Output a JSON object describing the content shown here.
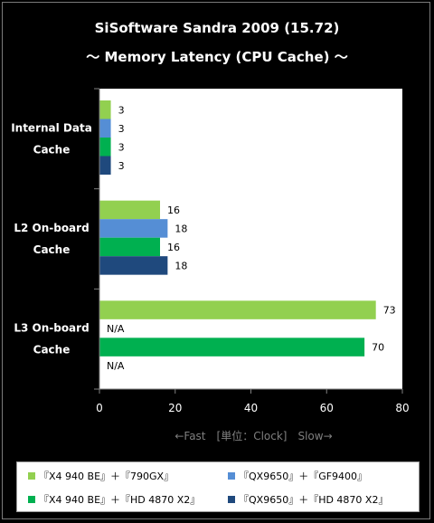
{
  "chart_data": {
    "type": "bar",
    "orientation": "horizontal",
    "title": "SiSoftware Sandra 2009 (15.72)",
    "subtitle": "～ Memory Latency (CPU Cache) ～",
    "xlabel": "←Fast　[単位：Clock]　Slow→",
    "xlim": [
      0,
      80
    ],
    "xticks": [
      "0",
      "20",
      "40",
      "60",
      "80"
    ],
    "grid": false,
    "legend_position": "bottom",
    "categories": [
      [
        "Internal Data",
        "Cache"
      ],
      [
        "L2 On-board",
        "Cache"
      ],
      [
        "L3 On-board",
        "Cache"
      ]
    ],
    "series": [
      {
        "name": "『X4 940 BE』＋『790GX』",
        "color": "#92d050",
        "values": [
          3,
          16,
          73
        ],
        "labels": [
          "3",
          "16",
          "73"
        ]
      },
      {
        "name": "『QX9650』＋『GF9400』",
        "color": "#558ed5",
        "values": [
          3,
          18,
          null
        ],
        "labels": [
          "3",
          "18",
          "N/A"
        ]
      },
      {
        "name": "『X4 940 BE』＋『HD 4870 X2』",
        "color": "#00b050",
        "values": [
          3,
          16,
          70
        ],
        "labels": [
          "3",
          "16",
          "70"
        ]
      },
      {
        "name": "『QX9650』＋『HD 4870 X2』",
        "color": "#1f497d",
        "values": [
          3,
          18,
          null
        ],
        "labels": [
          "3",
          "18",
          "N/A"
        ]
      }
    ]
  }
}
